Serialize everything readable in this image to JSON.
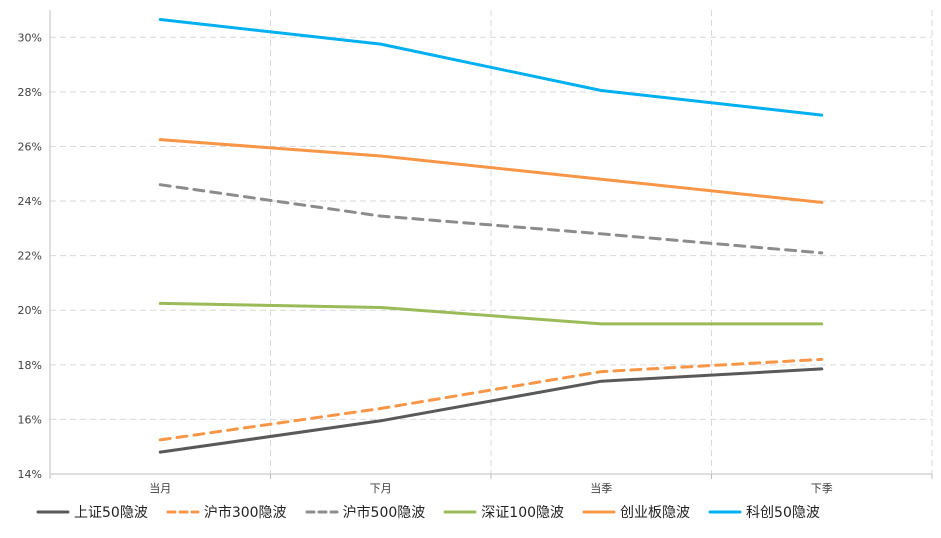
{
  "chart_data": {
    "type": "line",
    "categories": [
      "当月",
      "下月",
      "当季",
      "下季"
    ],
    "ylim": [
      14,
      31
    ],
    "yticks": [
      14,
      16,
      18,
      20,
      22,
      24,
      26,
      28,
      30
    ],
    "ytick_labels": [
      "14%",
      "16%",
      "18%",
      "20%",
      "22%",
      "24%",
      "26%",
      "28%",
      "30%"
    ],
    "grid": true,
    "legend_position": "bottom",
    "series": [
      {
        "name": "上证50隐波",
        "values": [
          14.8,
          15.95,
          17.4,
          17.85
        ],
        "color": "#595959",
        "dash": "solid"
      },
      {
        "name": "沪市300隐波",
        "values": [
          15.25,
          16.4,
          17.75,
          18.2
        ],
        "color": "#F79646",
        "dash": "dashed"
      },
      {
        "name": "沪市500隐波",
        "values": [
          24.6,
          23.45,
          22.8,
          22.1
        ],
        "color": "#8C8C8C",
        "dash": "dashed"
      },
      {
        "name": "深证100隐波",
        "values": [
          20.25,
          20.1,
          19.5,
          19.5
        ],
        "color": "#9BBB59",
        "dash": "solid"
      },
      {
        "name": "创业板隐波",
        "values": [
          26.25,
          25.65,
          24.8,
          23.95
        ],
        "color": "#F79646",
        "dash": "solid"
      },
      {
        "name": "科创50隐波",
        "values": [
          30.65,
          29.75,
          28.05,
          27.15
        ],
        "color": "#00B0F0",
        "dash": "solid"
      }
    ]
  }
}
